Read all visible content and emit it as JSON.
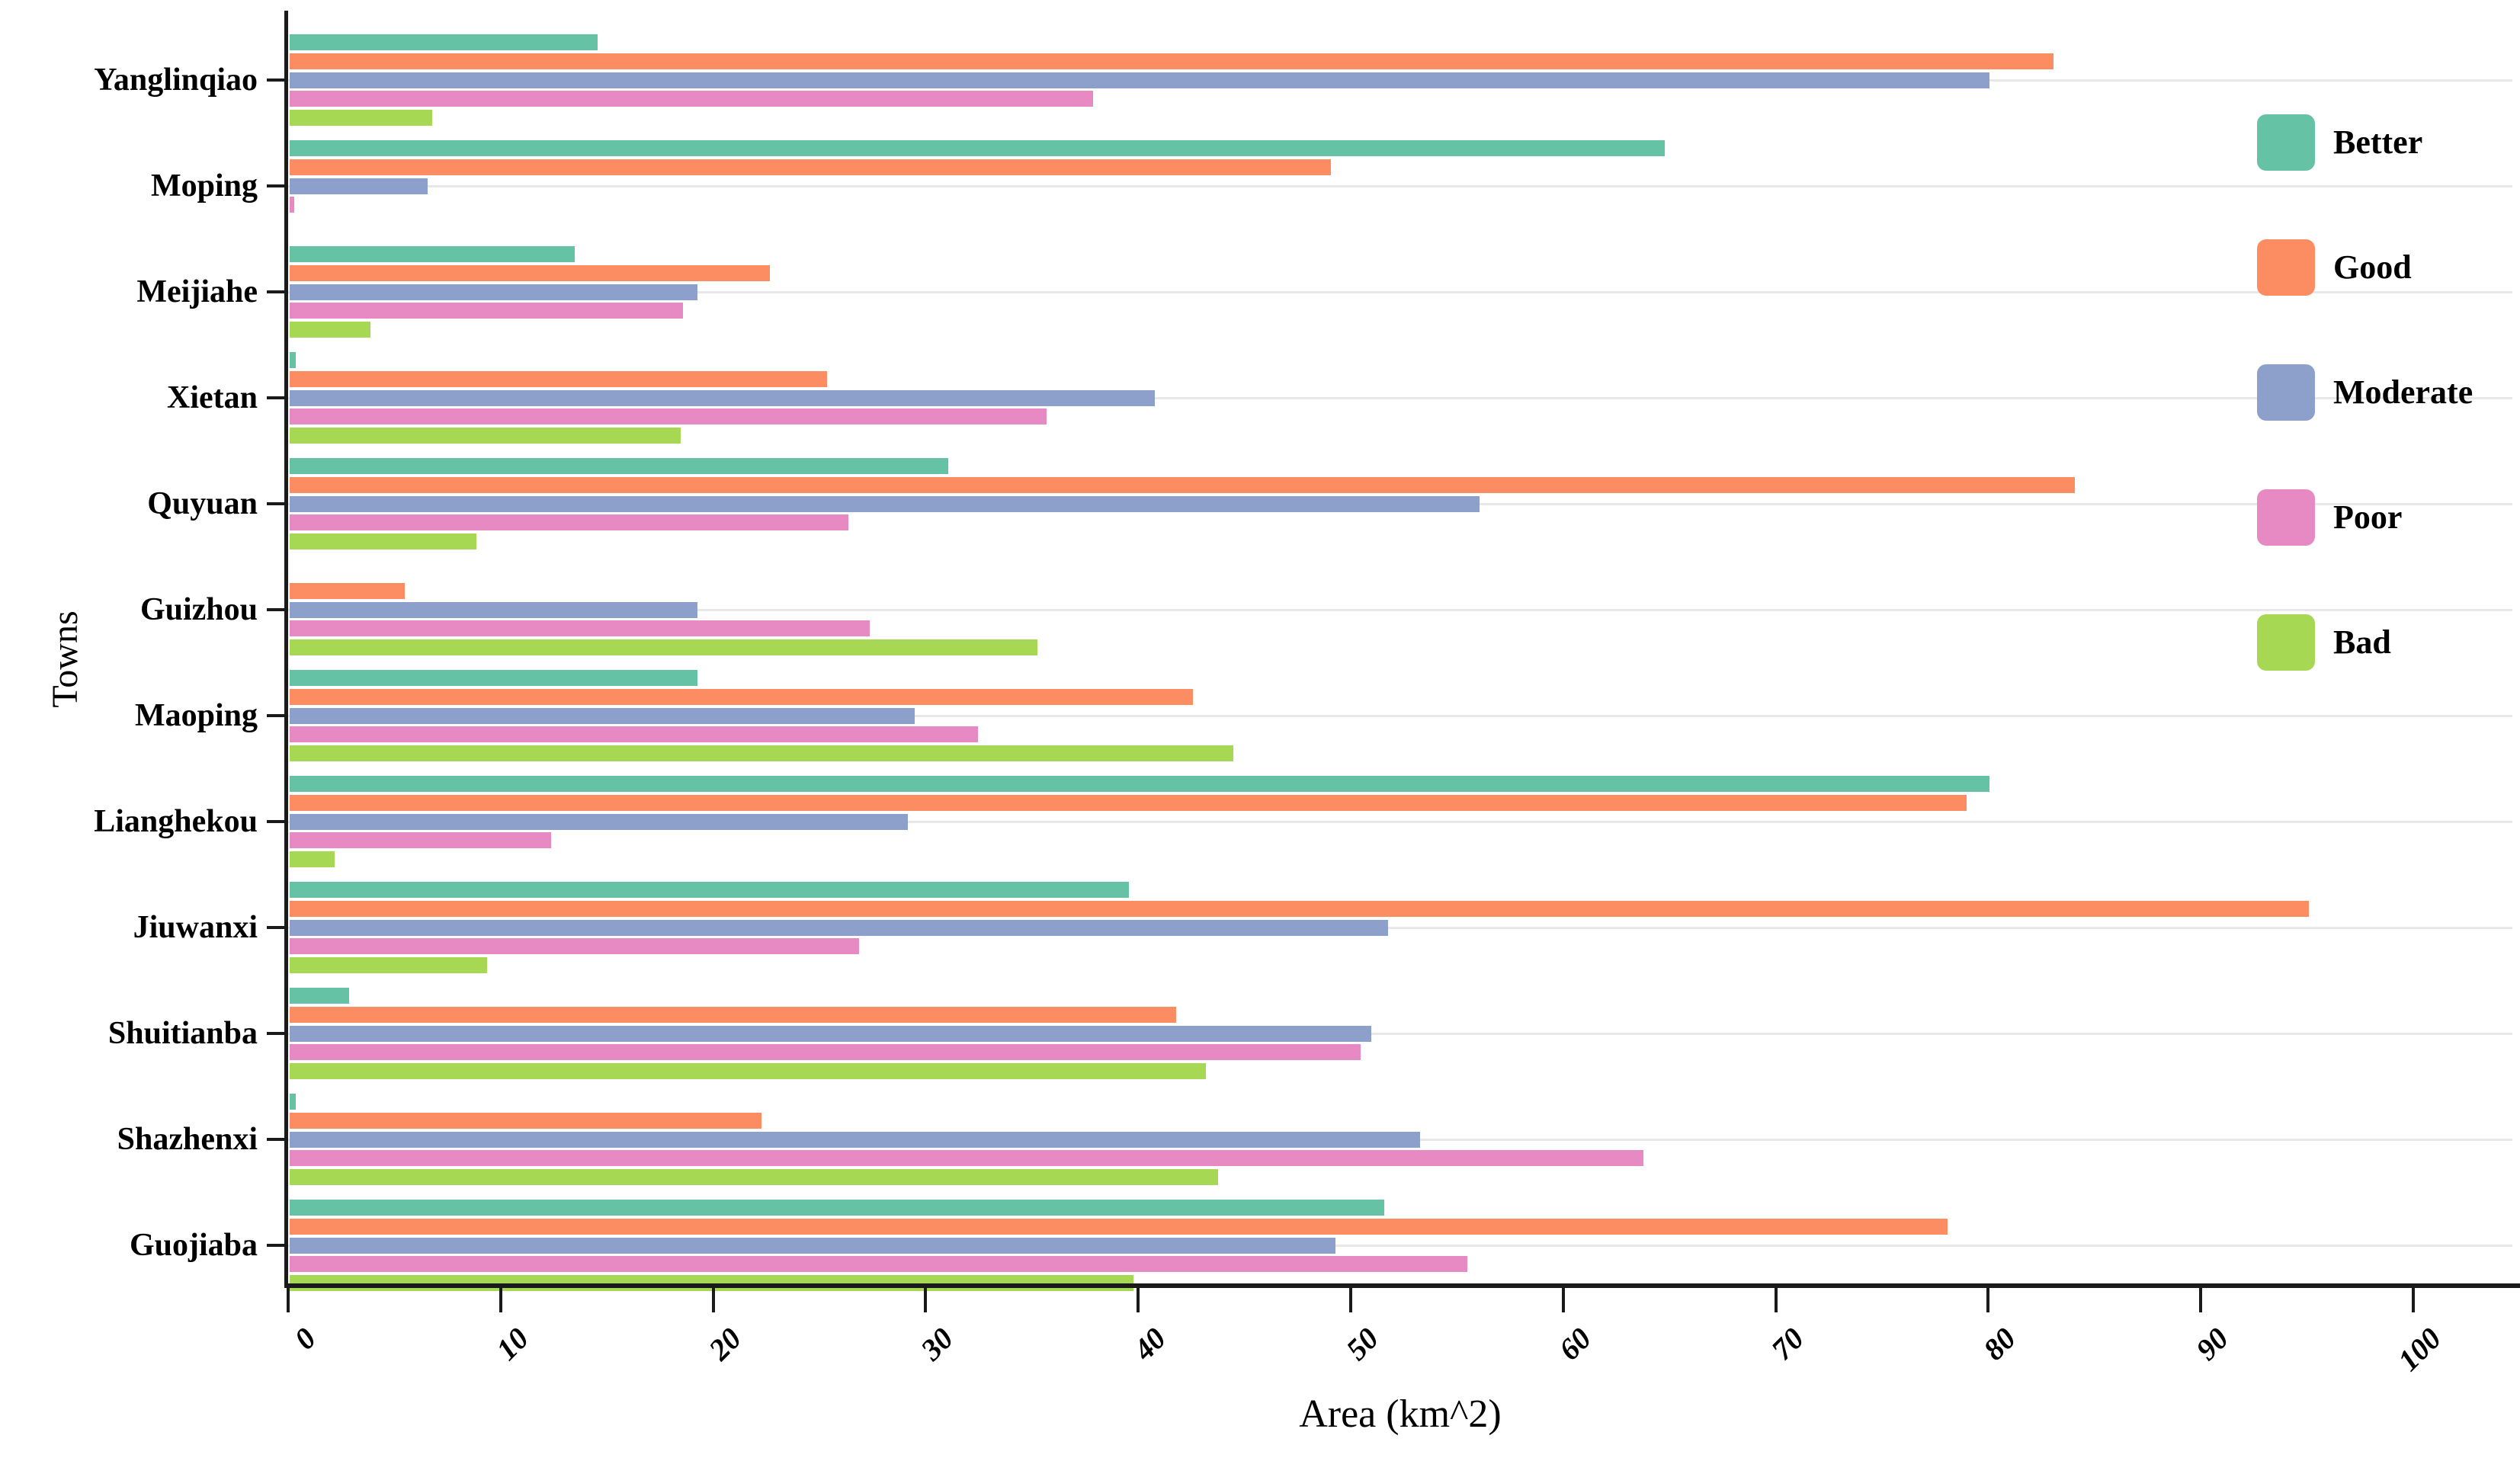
{
  "figure": {
    "background_color": "#ffffff",
    "axis_color": "#1a1a1a",
    "gridline_color": "#e8e8e8"
  },
  "chart_data": {
    "type": "bar",
    "orientation": "horizontal",
    "title": "",
    "xlabel": "Area (km^2)",
    "ylabel": "Towns",
    "categories": [
      "Yanglinqiao",
      "Moping",
      "Meijiahe",
      "Xietan",
      "Quyuan",
      "Guizhou",
      "Maoping",
      "Lianghekou",
      "Jiuwanxi",
      "Shuitianba",
      "Shazhenxi",
      "Guojiaba"
    ],
    "series": [
      {
        "name": "Better",
        "color": "#66c2a5",
        "values": [
          14.5,
          64.7,
          13.4,
          0.3,
          31.0,
          0,
          19.2,
          80.0,
          39.5,
          2.8,
          0.3,
          51.5
        ]
      },
      {
        "name": "Good",
        "color": "#fc8d62",
        "values": [
          83.0,
          49.0,
          22.6,
          25.3,
          84.0,
          5.4,
          42.5,
          78.9,
          95.0,
          41.7,
          22.2,
          78.0
        ]
      },
      {
        "name": "Moderate",
        "color": "#8da0cb",
        "values": [
          80.0,
          6.5,
          19.2,
          40.7,
          56.0,
          19.2,
          29.4,
          29.1,
          51.7,
          50.9,
          53.2,
          49.2
        ]
      },
      {
        "name": "Poor",
        "color": "#e78ac3",
        "values": [
          37.8,
          0.2,
          18.5,
          35.6,
          26.3,
          27.3,
          32.4,
          12.3,
          26.8,
          50.4,
          63.7,
          55.4
        ]
      },
      {
        "name": "Bad",
        "color": "#a6d854",
        "values": [
          6.7,
          0,
          3.8,
          18.4,
          8.8,
          35.2,
          44.4,
          2.1,
          9.3,
          43.1,
          43.7,
          39.7
        ]
      }
    ],
    "x_ticks": [
      0,
      10,
      20,
      30,
      40,
      50,
      60,
      70,
      80,
      90,
      100
    ],
    "xlim": [
      0,
      104.5
    ],
    "grid": "light horizontal gridline at each town category",
    "legend": {
      "position": "upper right",
      "labels": [
        "Better",
        "Good",
        "Moderate",
        "Poor",
        "Bad"
      ]
    }
  }
}
